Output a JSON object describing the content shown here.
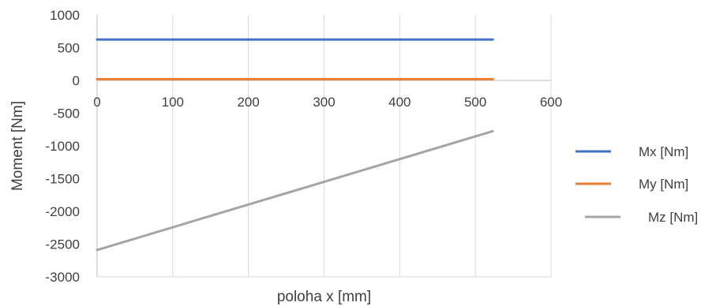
{
  "chart_data": {
    "type": "line",
    "xlabel": "poloha x [mm]",
    "ylabel": "Moment [Nm]",
    "xlim": [
      0,
      600
    ],
    "ylim": [
      -3000,
      1000
    ],
    "x_ticks": [
      0,
      100,
      200,
      300,
      400,
      500,
      600
    ],
    "y_ticks": [
      1000,
      500,
      0,
      -500,
      -1000,
      -1500,
      -2000,
      -2500,
      -3000
    ],
    "grid": "vertical",
    "legend_position": "right",
    "series": [
      {
        "name": "Mx [Nm]",
        "color": "#4472C4",
        "x": [
          0,
          523
        ],
        "y": [
          625,
          625
        ]
      },
      {
        "name": "My [Nm]",
        "color": "#ED7D31",
        "x": [
          0,
          523
        ],
        "y": [
          20,
          20
        ]
      },
      {
        "name": "Mz [Nm]",
        "color": "#A5A5A5",
        "x": [
          0,
          523
        ],
        "y": [
          -2590,
          -775
        ]
      }
    ]
  }
}
